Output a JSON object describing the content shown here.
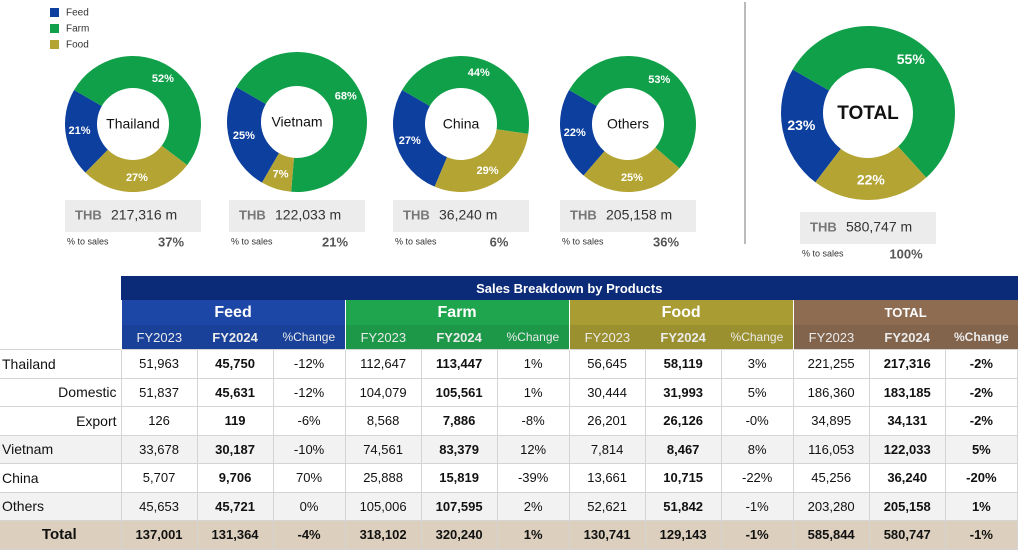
{
  "chart_data": [
    {
      "type": "pie",
      "label": "Thailand",
      "categories": [
        "Feed",
        "Farm",
        "Food"
      ],
      "values": [
        21,
        52,
        27
      ],
      "value_labels": [
        "21%",
        "52%",
        "27%"
      ],
      "colors": [
        "#0c3f9e",
        "#11a04a",
        "#b4a433"
      ],
      "currency": "THB",
      "amount": "217,316 m",
      "share_caption": "% to sales",
      "share": "37%"
    },
    {
      "type": "pie",
      "label": "Vietnam",
      "categories": [
        "Feed",
        "Farm",
        "Food"
      ],
      "values": [
        25,
        68,
        7
      ],
      "value_labels": [
        "25%",
        "68%",
        "7%"
      ],
      "colors": [
        "#0c3f9e",
        "#11a04a",
        "#b4a433"
      ],
      "currency": "THB",
      "amount": "122,033 m",
      "share_caption": "% to sales",
      "share": "21%"
    },
    {
      "type": "pie",
      "label": "China",
      "categories": [
        "Feed",
        "Farm",
        "Food"
      ],
      "values": [
        27,
        44,
        29
      ],
      "value_labels": [
        "27%",
        "44%",
        "29%"
      ],
      "colors": [
        "#0c3f9e",
        "#11a04a",
        "#b4a433"
      ],
      "currency": "THB",
      "amount": "36,240 m",
      "share_caption": "% to sales",
      "share": "6%"
    },
    {
      "type": "pie",
      "label": "Others",
      "categories": [
        "Feed",
        "Farm",
        "Food"
      ],
      "values": [
        22,
        53,
        25
      ],
      "value_labels": [
        "22%",
        "53%",
        "25%"
      ],
      "colors": [
        "#0c3f9e",
        "#11a04a",
        "#b4a433"
      ],
      "currency": "THB",
      "amount": "205,158 m",
      "share_caption": "% to sales",
      "share": "36%"
    },
    {
      "type": "pie",
      "label": "TOTAL",
      "categories": [
        "Feed",
        "Farm",
        "Food"
      ],
      "values": [
        23,
        55,
        22
      ],
      "value_labels": [
        "23%",
        "55%",
        "22%"
      ],
      "colors": [
        "#0c3f9e",
        "#11a04a",
        "#b4a433"
      ],
      "currency": "THB",
      "amount": "580,747 m",
      "share_caption": "% to sales",
      "share": "100%"
    }
  ],
  "table": {
    "title": "Sales Breakdown by Products",
    "groups": [
      {
        "name": "Feed",
        "color": "#1c47a6"
      },
      {
        "name": "Farm",
        "color": "#1ea54e"
      },
      {
        "name": "Food",
        "color": "#a99c33"
      },
      {
        "name": "TOTAL",
        "color": "#8d6c52"
      }
    ],
    "columns": [
      "FY2023",
      "FY2024",
      "%Change"
    ],
    "rows": [
      {
        "label": "Thailand",
        "indent": false,
        "cells": [
          "51,963",
          "45,750",
          "-12%",
          "112,647",
          "113,447",
          "1%",
          "56,645",
          "58,119",
          "3%",
          "221,255",
          "217,316",
          "-2%"
        ]
      },
      {
        "label": "Domestic",
        "indent": true,
        "cells": [
          "51,837",
          "45,631",
          "-12%",
          "104,079",
          "105,561",
          "1%",
          "30,444",
          "31,993",
          "5%",
          "186,360",
          "183,185",
          "-2%"
        ]
      },
      {
        "label": "Export",
        "indent": true,
        "cells": [
          "126",
          "119",
          "-6%",
          "8,568",
          "7,886",
          "-8%",
          "26,201",
          "26,126",
          "-0%",
          "34,895",
          "34,131",
          "-2%"
        ]
      },
      {
        "label": "Vietnam",
        "indent": false,
        "cells": [
          "33,678",
          "30,187",
          "-10%",
          "74,561",
          "83,379",
          "12%",
          "7,814",
          "8,467",
          "8%",
          "116,053",
          "122,033",
          "5%"
        ]
      },
      {
        "label": "China",
        "indent": false,
        "cells": [
          "5,707",
          "9,706",
          "70%",
          "25,888",
          "15,819",
          "-39%",
          "13,661",
          "10,715",
          "-22%",
          "45,256",
          "36,240",
          "-20%"
        ]
      },
      {
        "label": "Others",
        "indent": false,
        "cells": [
          "45,653",
          "45,721",
          "0%",
          "105,006",
          "107,595",
          "2%",
          "52,621",
          "51,842",
          "-1%",
          "203,280",
          "205,158",
          "1%"
        ]
      },
      {
        "label": "Total",
        "indent": false,
        "cells": [
          "137,001",
          "131,364",
          "-4%",
          "318,102",
          "320,240",
          "1%",
          "130,741",
          "129,143",
          "-1%",
          "585,844",
          "580,747",
          "-1%"
        ]
      }
    ]
  }
}
